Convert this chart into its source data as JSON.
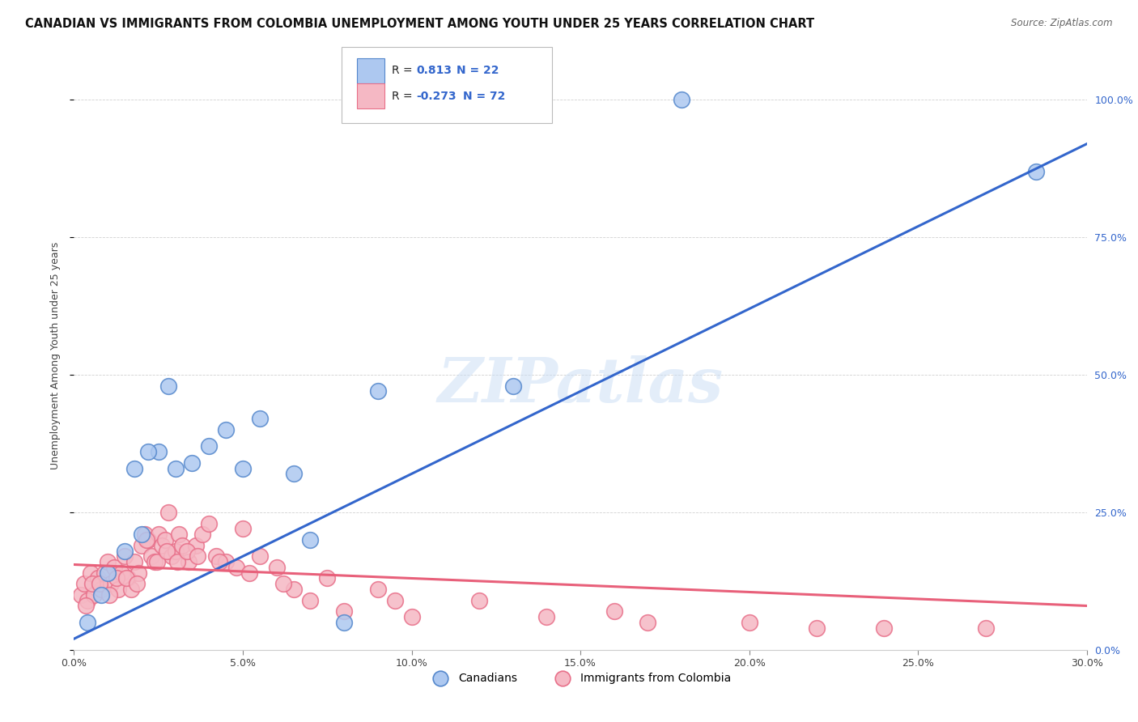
{
  "title": "CANADIAN VS IMMIGRANTS FROM COLOMBIA UNEMPLOYMENT AMONG YOUTH UNDER 25 YEARS CORRELATION CHART",
  "source": "Source: ZipAtlas.com",
  "xlabel_vals": [
    0.0,
    5.0,
    10.0,
    15.0,
    20.0,
    25.0,
    30.0
  ],
  "ylabel_vals": [
    0.0,
    25.0,
    50.0,
    75.0,
    100.0
  ],
  "ylabel_label": "Unemployment Among Youth under 25 years",
  "watermark": "ZIPatlas",
  "legend_canadians": "Canadians",
  "legend_colombia": "Immigrants from Colombia",
  "r_canadians": "0.813",
  "n_canadians": "22",
  "r_colombia": "-0.273",
  "n_colombia": "72",
  "blue_fill": "#adc8f0",
  "pink_fill": "#f5b8c4",
  "blue_edge": "#5588cc",
  "pink_edge": "#e8708a",
  "blue_line": "#3366cc",
  "pink_line": "#e8607a",
  "canadians_x": [
    0.4,
    0.8,
    1.0,
    1.5,
    1.8,
    2.0,
    2.5,
    3.0,
    3.5,
    4.0,
    4.5,
    5.0,
    5.5,
    6.5,
    7.0,
    8.0,
    18.0,
    28.5,
    2.2,
    2.8,
    13.0,
    9.0
  ],
  "canadians_y": [
    5.0,
    10.0,
    14.0,
    18.0,
    33.0,
    21.0,
    36.0,
    33.0,
    34.0,
    37.0,
    40.0,
    33.0,
    42.0,
    32.0,
    20.0,
    5.0,
    100.0,
    87.0,
    36.0,
    48.0,
    48.0,
    47.0
  ],
  "colombia_x": [
    0.2,
    0.3,
    0.4,
    0.5,
    0.6,
    0.7,
    0.8,
    0.9,
    1.0,
    1.1,
    1.2,
    1.3,
    1.4,
    1.5,
    1.6,
    1.7,
    1.8,
    1.9,
    2.0,
    2.1,
    2.2,
    2.3,
    2.4,
    2.5,
    2.6,
    2.7,
    2.8,
    2.9,
    3.0,
    3.1,
    3.2,
    3.4,
    3.6,
    3.8,
    4.0,
    4.2,
    4.5,
    4.8,
    5.0,
    5.5,
    6.0,
    6.5,
    7.0,
    7.5,
    8.0,
    9.0,
    10.0,
    12.0,
    14.0,
    16.0,
    17.0,
    20.0,
    22.0,
    24.0,
    27.0,
    0.35,
    0.55,
    0.75,
    1.05,
    1.25,
    1.55,
    1.85,
    2.15,
    2.45,
    2.75,
    3.05,
    3.35,
    3.65,
    4.3,
    5.2,
    6.2,
    9.5
  ],
  "colombia_y": [
    10.0,
    12.0,
    9.0,
    14.0,
    10.0,
    13.0,
    11.0,
    14.0,
    16.0,
    12.0,
    15.0,
    11.0,
    14.0,
    17.0,
    13.0,
    11.0,
    16.0,
    14.0,
    19.0,
    21.0,
    20.0,
    17.0,
    16.0,
    21.0,
    19.0,
    20.0,
    25.0,
    17.0,
    18.0,
    21.0,
    19.0,
    16.0,
    19.0,
    21.0,
    23.0,
    17.0,
    16.0,
    15.0,
    22.0,
    17.0,
    15.0,
    11.0,
    9.0,
    13.0,
    7.0,
    11.0,
    6.0,
    9.0,
    6.0,
    7.0,
    5.0,
    5.0,
    4.0,
    4.0,
    4.0,
    8.0,
    12.0,
    12.0,
    10.0,
    13.0,
    13.0,
    12.0,
    20.0,
    16.0,
    18.0,
    16.0,
    18.0,
    17.0,
    16.0,
    14.0,
    12.0,
    9.0
  ],
  "blue_reg_x0": 0.0,
  "blue_reg_y0": 2.0,
  "blue_reg_x1": 30.0,
  "blue_reg_y1": 92.0,
  "pink_reg_x0": 0.0,
  "pink_reg_y0": 15.5,
  "pink_reg_x1": 30.0,
  "pink_reg_y1": 8.0,
  "xmin": 0.0,
  "xmax": 30.0,
  "ymin": 0.0,
  "ymax": 107.0
}
